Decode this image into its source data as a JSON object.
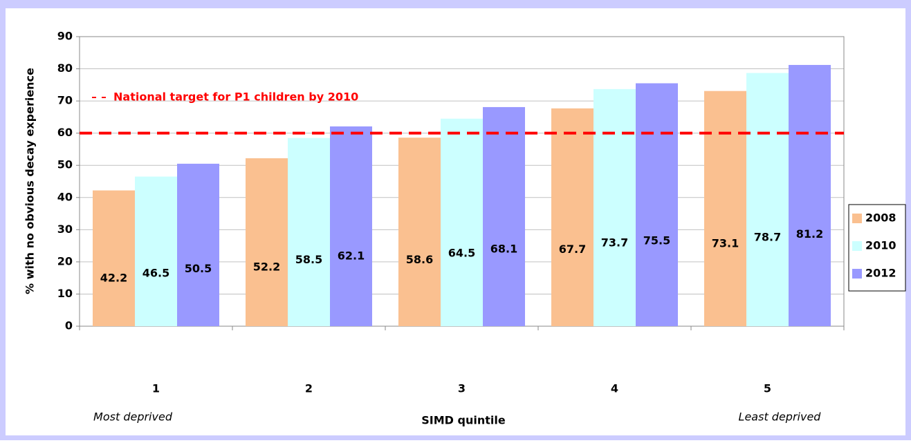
{
  "chart_data": {
    "type": "bar",
    "y_label": "% with no obvious decay experience",
    "x_label": "SIMD quintile",
    "categories": [
      "1",
      "2",
      "3",
      "4",
      "5"
    ],
    "series": [
      {
        "name": "2008",
        "color": "#fac090",
        "values": [
          42.2,
          52.2,
          58.6,
          67.7,
          73.1
        ]
      },
      {
        "name": "2010",
        "color": "#ccffff",
        "values": [
          46.5,
          58.5,
          64.5,
          73.7,
          78.7
        ]
      },
      {
        "name": "2012",
        "color": "#9999ff",
        "values": [
          50.5,
          62.1,
          68.1,
          75.5,
          81.2
        ]
      }
    ],
    "ylim": [
      0,
      90
    ],
    "yticks": [
      0,
      10,
      20,
      30,
      40,
      50,
      60,
      70,
      80,
      90
    ],
    "grid": true,
    "reference_line": {
      "value": 60,
      "label": "National target for P1 children by 2010",
      "color": "#ff0000"
    },
    "annotations": [
      "Most deprived",
      "Least deprived"
    ],
    "legend": "right"
  }
}
